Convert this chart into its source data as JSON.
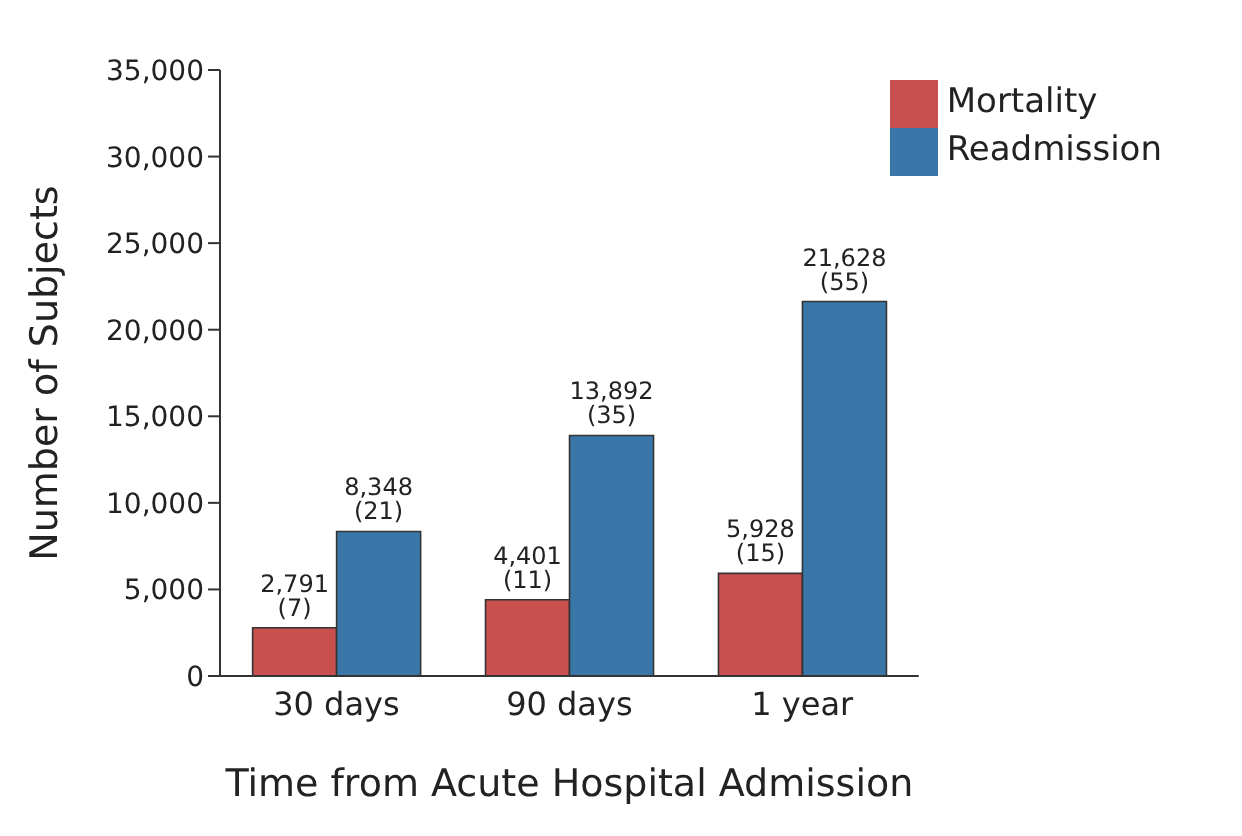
{
  "chart_data": {
    "type": "bar",
    "xlabel": "Time from Acute Hospital Admission",
    "ylabel": "Number of Subjects",
    "categories": [
      "30 days",
      "90 days",
      "1 year"
    ],
    "series": [
      {
        "name": "Mortality",
        "color": "#c8504f",
        "values": [
          2791,
          4401,
          5928
        ],
        "value_labels": [
          "2,791 (7)",
          "4,401 (11)",
          "5,928 (15)"
        ]
      },
      {
        "name": "Readmission",
        "color": "#3a77a8",
        "values": [
          8348,
          13892,
          21628
        ],
        "value_labels": [
          "8,348 (21)",
          "13,892 (35)",
          "21,628 (55)"
        ]
      }
    ],
    "ylim": [
      0,
      35000
    ],
    "yticks": [
      {
        "value": 0,
        "label": "0"
      },
      {
        "value": 5000,
        "label": "5,000"
      },
      {
        "value": 10000,
        "label": "10,000"
      },
      {
        "value": 15000,
        "label": "15,000"
      },
      {
        "value": 20000,
        "label": "20,000"
      },
      {
        "value": 25000,
        "label": "25,000"
      },
      {
        "value": 30000,
        "label": "30,000"
      },
      {
        "value": 35000,
        "label": "35,000"
      }
    ],
    "grid": false,
    "legend": "top right"
  }
}
